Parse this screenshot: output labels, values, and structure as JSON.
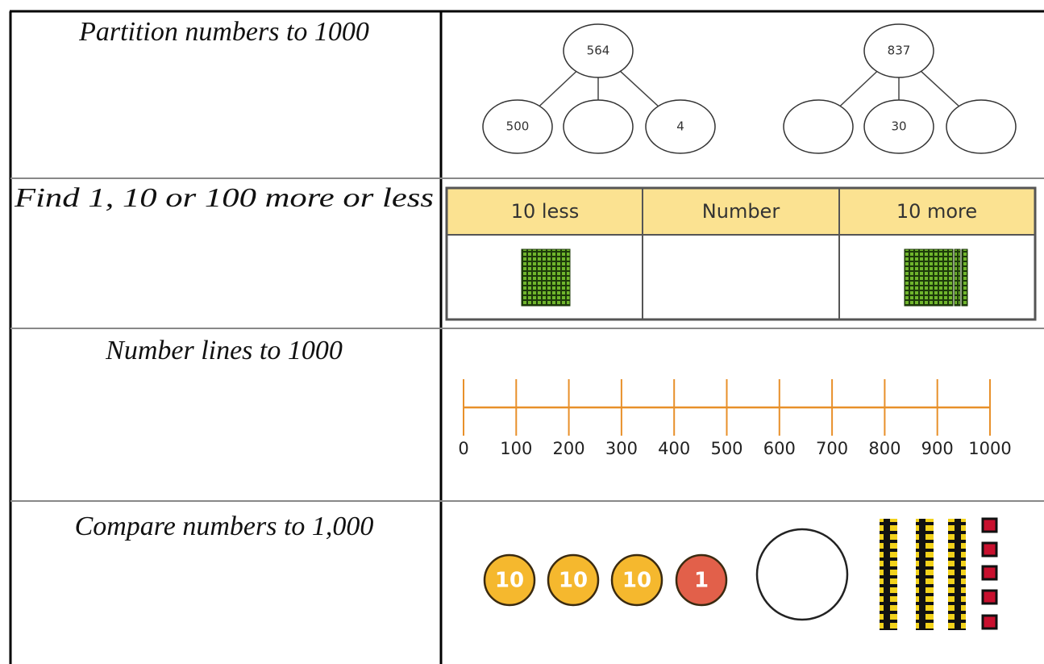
{
  "rows": [
    {
      "label": "Partition numbers to 1000",
      "part_whole_models": [
        {
          "whole": 564,
          "parts": [
            500,
            null,
            4
          ]
        },
        {
          "whole": 837,
          "parts": [
            null,
            30,
            null
          ]
        }
      ]
    },
    {
      "label": "Find 1, 10 or 100 more or less",
      "table": {
        "headers": [
          "10 less",
          "Number",
          "10 more"
        ]
      }
    },
    {
      "label": "Number lines to 1000",
      "number_line": {
        "labels": [
          0,
          100,
          200,
          300,
          400,
          500,
          600,
          700,
          800,
          900,
          1000
        ]
      }
    },
    {
      "label": "Compare numbers to 1,000",
      "counters": [
        10,
        10,
        10,
        1
      ]
    }
  ]
}
